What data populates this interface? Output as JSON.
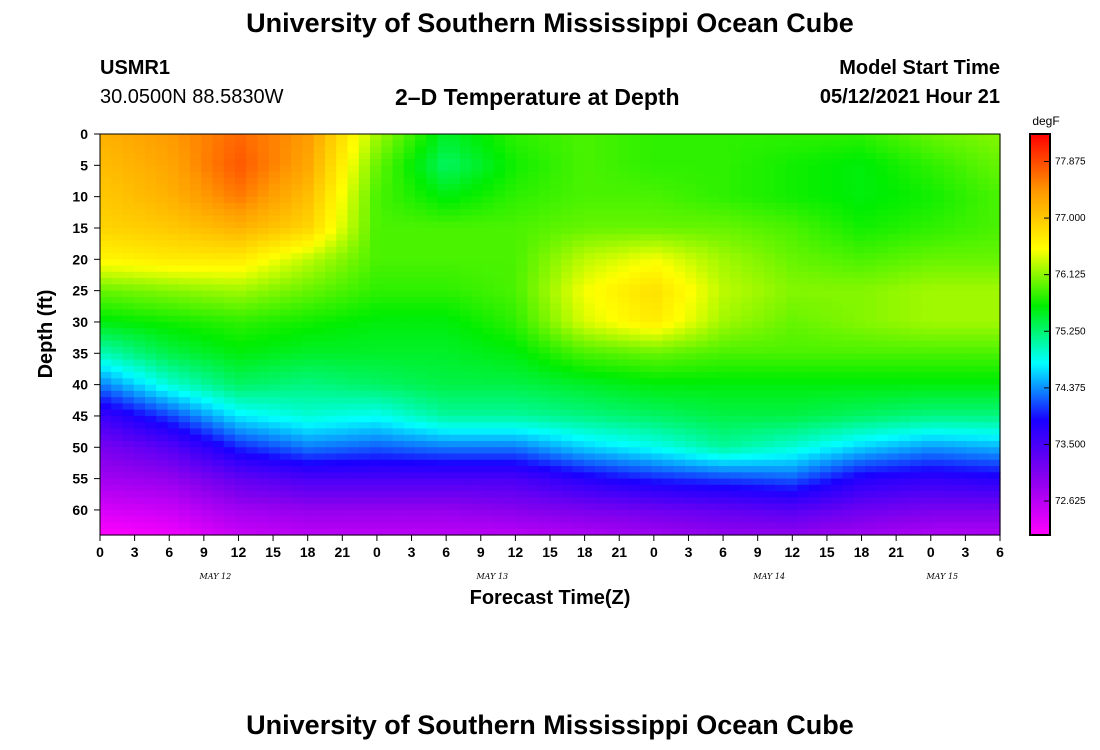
{
  "page": {
    "title_top": "University of Southern Mississippi Ocean Cube",
    "title_bottom": "University of Southern Mississippi Ocean Cube",
    "station_id": "USMR1",
    "station_coords": "30.0500N  88.5830W",
    "model_start_label": "Model Start Time",
    "model_start_value": "05/12/2021 Hour 21"
  },
  "chart_data": {
    "type": "heatmap",
    "title": "2–D Temperature at Depth",
    "xlabel": "Forecast Time(Z)",
    "ylabel": "Depth (ft)",
    "colorbar_unit": "degF",
    "x_tick_labels": [
      "0",
      "3",
      "6",
      "9",
      "12",
      "15",
      "18",
      "21",
      "0",
      "3",
      "6",
      "9",
      "12",
      "15",
      "18",
      "21",
      "0",
      "3",
      "6",
      "9",
      "12",
      "15",
      "18",
      "21",
      "0",
      "3",
      "6"
    ],
    "day_labels": [
      {
        "label": "MAY 12",
        "x": 10
      },
      {
        "label": "MAY 13",
        "x": 34
      },
      {
        "label": "MAY 14",
        "x": 58
      },
      {
        "label": "MAY 15",
        "x": 73
      }
    ],
    "x_range": [
      0,
      78
    ],
    "y_ticks": [
      0,
      5,
      10,
      15,
      20,
      25,
      30,
      35,
      40,
      45,
      50,
      55,
      60
    ],
    "y_range": [
      0,
      64
    ],
    "color_ticks": [
      77.875,
      77.0,
      76.125,
      75.25,
      74.375,
      73.5,
      72.625
    ],
    "color_tick_labels": [
      "77.875",
      "77.000",
      "76.125",
      "75.250",
      "74.375",
      "73.500",
      "72.625"
    ],
    "color_range": [
      72.1,
      78.3
    ],
    "colors": [
      "#ff00ff",
      "#8800ee",
      "#1a00ff",
      "#00ffff",
      "#00ee00",
      "#ffff00",
      "#ff9900",
      "#ff0000"
    ],
    "depth_profile": {
      "depths": [
        0,
        5,
        10,
        15,
        20,
        25,
        30,
        35,
        40,
        45,
        50,
        55,
        60,
        64
      ],
      "profiles": [
        {
          "x": 0,
          "temps": [
            77.2,
            77.1,
            77.0,
            76.9,
            76.6,
            76.0,
            75.6,
            75.0,
            74.3,
            73.6,
            73.1,
            72.8,
            72.4,
            72.1
          ]
        },
        {
          "x": 6,
          "temps": [
            77.4,
            77.3,
            77.2,
            77.0,
            76.7,
            76.1,
            75.7,
            75.4,
            74.9,
            74.1,
            73.4,
            72.9,
            72.5,
            72.2
          ]
        },
        {
          "x": 12,
          "temps": [
            77.7,
            77.8,
            77.6,
            77.2,
            76.7,
            76.2,
            75.8,
            75.6,
            75.3,
            74.7,
            74.0,
            73.3,
            72.8,
            72.5
          ]
        },
        {
          "x": 18,
          "temps": [
            77.4,
            77.3,
            77.1,
            76.9,
            76.3,
            76.0,
            75.7,
            75.5,
            75.2,
            74.9,
            74.3,
            73.5,
            72.9,
            72.6
          ]
        },
        {
          "x": 24,
          "temps": [
            76.2,
            76.0,
            75.9,
            75.9,
            75.9,
            75.8,
            75.6,
            75.5,
            75.3,
            74.8,
            74.2,
            73.5,
            72.9,
            72.6
          ]
        },
        {
          "x": 30,
          "temps": [
            75.5,
            75.3,
            75.6,
            75.9,
            75.9,
            75.8,
            75.6,
            75.5,
            75.4,
            75.1,
            74.3,
            73.5,
            72.9,
            72.6
          ]
        },
        {
          "x": 36,
          "temps": [
            75.8,
            75.7,
            75.8,
            75.9,
            75.9,
            75.9,
            75.8,
            75.6,
            75.4,
            75.1,
            74.3,
            73.5,
            73.0,
            72.6
          ]
        },
        {
          "x": 42,
          "temps": [
            75.9,
            75.9,
            75.9,
            76.0,
            76.3,
            76.5,
            76.4,
            75.9,
            75.5,
            75.2,
            74.6,
            73.8,
            73.1,
            72.7
          ]
        },
        {
          "x": 48,
          "temps": [
            75.8,
            75.8,
            75.9,
            76.0,
            76.5,
            76.8,
            76.7,
            76.0,
            75.6,
            75.3,
            74.8,
            74.0,
            73.2,
            72.8
          ]
        },
        {
          "x": 54,
          "temps": [
            75.8,
            75.8,
            75.8,
            76.0,
            76.2,
            76.3,
            76.2,
            75.9,
            75.6,
            75.4,
            75.1,
            74.1,
            73.3,
            72.9
          ]
        },
        {
          "x": 60,
          "temps": [
            75.8,
            75.7,
            75.7,
            75.9,
            76.0,
            76.1,
            76.0,
            75.9,
            75.6,
            75.4,
            74.9,
            74.2,
            73.4,
            72.9
          ]
        },
        {
          "x": 66,
          "temps": [
            75.8,
            75.6,
            75.6,
            75.7,
            75.9,
            76.1,
            76.1,
            75.9,
            75.6,
            75.3,
            74.6,
            73.8,
            73.2,
            72.8
          ]
        },
        {
          "x": 72,
          "temps": [
            76.0,
            75.8,
            75.7,
            75.8,
            76.0,
            76.2,
            76.2,
            75.9,
            75.6,
            75.2,
            74.4,
            73.7,
            73.1,
            72.7
          ]
        },
        {
          "x": 78,
          "temps": [
            76.1,
            76.0,
            75.9,
            75.9,
            76.0,
            76.2,
            76.2,
            75.9,
            75.6,
            75.2,
            74.5,
            73.8,
            73.1,
            72.7
          ]
        }
      ]
    },
    "grid": false
  }
}
